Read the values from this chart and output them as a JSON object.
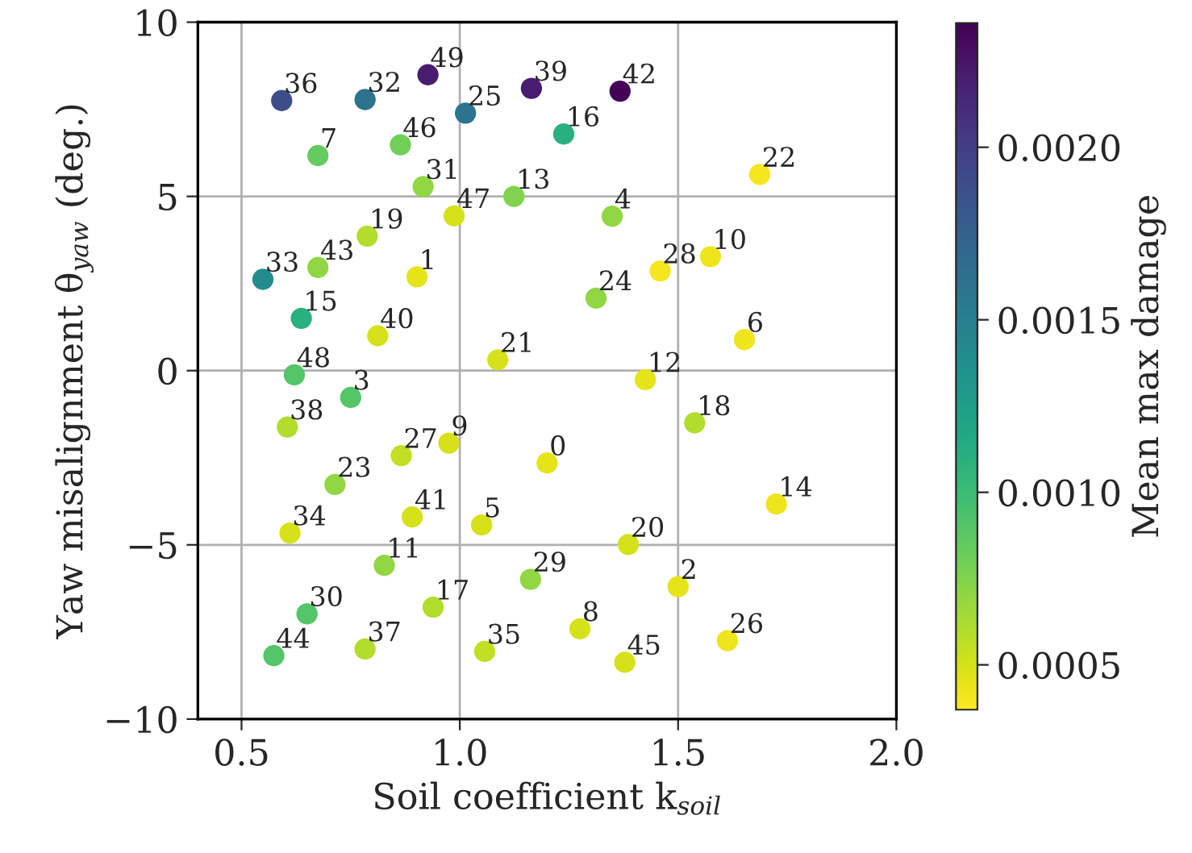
{
  "chart_data": {
    "type": "scatter",
    "xlabel": "Soil coefficient k$_{soil}$",
    "ylabel": "Yaw misalignment θ$_{yaw}$ (deg.)",
    "clabel": "Mean max damage",
    "x": [
      1.2,
      0.902,
      1.5,
      0.75,
      1.349,
      1.05,
      1.652,
      0.675,
      1.275,
      0.975,
      1.574,
      0.827,
      1.425,
      1.124,
      1.725,
      0.637,
      1.238,
      0.939,
      1.538,
      0.788,
      1.386,
      1.087,
      1.687,
      0.714,
      1.312,
      1.013,
      1.613,
      0.866,
      1.459,
      1.162,
      0.65,
      0.916,
      0.783,
      0.549,
      0.611,
      1.057,
      0.592,
      0.783,
      0.605,
      1.164,
      0.812,
      0.891,
      1.367,
      0.675,
      0.574,
      1.378,
      0.864,
      0.987,
      0.621,
      0.927
    ],
    "series": [
      {
        "values": [
          -2.65,
          2.69,
          -6.2,
          -0.77,
          4.43,
          -4.43,
          0.89,
          6.17,
          -7.41,
          -2.08,
          3.27,
          -5.59,
          -0.26,
          5.0,
          -3.83,
          1.5,
          6.79,
          -6.79,
          -1.5,
          3.86,
          -4.99,
          0.31,
          5.63,
          -3.27,
          2.08,
          7.39,
          -7.75,
          -2.44,
          2.86,
          -5.99,
          -6.98,
          5.28,
          7.78,
          2.62,
          -4.66,
          -8.06,
          7.75,
          -7.99,
          -1.62,
          8.1,
          1.0,
          -4.2,
          8.02,
          2.96,
          -8.18,
          -8.37,
          6.48,
          4.44,
          -0.12,
          8.49
        ],
        "cvalues": [
          0.00045,
          0.00045,
          0.00045,
          0.0009,
          0.0007,
          0.0005,
          0.00042,
          0.00085,
          0.0005,
          0.0005,
          0.00042,
          0.0007,
          0.00045,
          0.00075,
          0.00042,
          0.0011,
          0.0011,
          0.0006,
          0.0006,
          0.0006,
          0.0005,
          0.0005,
          0.0004,
          0.0007,
          0.0007,
          0.0016,
          0.00042,
          0.00055,
          0.0004,
          0.0007,
          0.0009,
          0.0007,
          0.0016,
          0.0014,
          0.0005,
          0.00055,
          0.0019,
          0.0006,
          0.0006,
          0.0022,
          0.0005,
          0.0005,
          0.00235,
          0.0007,
          0.0009,
          0.0005,
          0.0008,
          0.0005,
          0.0009,
          0.0022
        ]
      }
    ],
    "annotations": [
      {
        "text": "0",
        "x": 1.2,
        "y": -2.65
      },
      {
        "text": "1",
        "x": 0.902,
        "y": 2.69
      },
      {
        "text": "2",
        "x": 1.5,
        "y": -6.2
      },
      {
        "text": "3",
        "x": 0.75,
        "y": -0.77
      },
      {
        "text": "4",
        "x": 1.349,
        "y": 4.43
      },
      {
        "text": "5",
        "x": 1.05,
        "y": -4.43
      },
      {
        "text": "6",
        "x": 1.652,
        "y": 0.89
      },
      {
        "text": "7",
        "x": 0.675,
        "y": 6.17
      },
      {
        "text": "8",
        "x": 1.275,
        "y": -7.41
      },
      {
        "text": "9",
        "x": 0.975,
        "y": -2.08
      },
      {
        "text": "10",
        "x": 1.574,
        "y": 3.27
      },
      {
        "text": "11",
        "x": 0.827,
        "y": -5.59
      },
      {
        "text": "12",
        "x": 1.425,
        "y": -0.26
      },
      {
        "text": "13",
        "x": 1.124,
        "y": 5.0
      },
      {
        "text": "14",
        "x": 1.725,
        "y": -3.83
      },
      {
        "text": "15",
        "x": 0.637,
        "y": 1.5
      },
      {
        "text": "16",
        "x": 1.238,
        "y": 6.79
      },
      {
        "text": "17",
        "x": 0.939,
        "y": -6.79
      },
      {
        "text": "18",
        "x": 1.538,
        "y": -1.5
      },
      {
        "text": "19",
        "x": 0.788,
        "y": 3.86
      },
      {
        "text": "20",
        "x": 1.386,
        "y": -4.99
      },
      {
        "text": "21",
        "x": 1.087,
        "y": 0.31
      },
      {
        "text": "22",
        "x": 1.687,
        "y": 5.63
      },
      {
        "text": "23",
        "x": 0.714,
        "y": -3.27
      },
      {
        "text": "24",
        "x": 1.312,
        "y": 2.08
      },
      {
        "text": "25",
        "x": 1.013,
        "y": 7.39
      },
      {
        "text": "26",
        "x": 1.613,
        "y": -7.75
      },
      {
        "text": "27",
        "x": 0.866,
        "y": -2.44
      },
      {
        "text": "28",
        "x": 1.459,
        "y": 2.86
      },
      {
        "text": "29",
        "x": 1.162,
        "y": -5.99
      },
      {
        "text": "30",
        "x": 0.65,
        "y": -6.98
      },
      {
        "text": "31",
        "x": 0.916,
        "y": 5.28
      },
      {
        "text": "32",
        "x": 0.783,
        "y": 7.78
      },
      {
        "text": "33",
        "x": 0.549,
        "y": 2.62
      },
      {
        "text": "34",
        "x": 0.611,
        "y": -4.66
      },
      {
        "text": "35",
        "x": 1.057,
        "y": -8.06
      },
      {
        "text": "36",
        "x": 0.592,
        "y": 7.75
      },
      {
        "text": "37",
        "x": 0.783,
        "y": -7.99
      },
      {
        "text": "38",
        "x": 0.605,
        "y": -1.62
      },
      {
        "text": "39",
        "x": 1.164,
        "y": 8.1
      },
      {
        "text": "40",
        "x": 0.812,
        "y": 1.0
      },
      {
        "text": "41",
        "x": 0.891,
        "y": -4.2
      },
      {
        "text": "42",
        "x": 1.367,
        "y": 8.02
      },
      {
        "text": "43",
        "x": 0.675,
        "y": 2.96
      },
      {
        "text": "44",
        "x": 0.574,
        "y": -8.18
      },
      {
        "text": "45",
        "x": 1.378,
        "y": -8.37
      },
      {
        "text": "46",
        "x": 0.864,
        "y": 6.48
      },
      {
        "text": "47",
        "x": 0.987,
        "y": 4.44
      },
      {
        "text": "48",
        "x": 0.621,
        "y": -0.12
      },
      {
        "text": "49",
        "x": 0.927,
        "y": 8.49
      }
    ],
    "marker": "circle",
    "xlim": [
      0.4,
      2.0
    ],
    "xticks": [
      {
        "value": 0.5,
        "label": "0.5"
      },
      {
        "value": 1.0,
        "label": "1.0"
      },
      {
        "value": 1.5,
        "label": "1.5"
      },
      {
        "value": 2.0,
        "label": "2.0"
      }
    ],
    "ylim": [
      -10,
      10
    ],
    "yticks": [
      {
        "value": -10,
        "label": "−10"
      },
      {
        "value": -5,
        "label": "−5"
      },
      {
        "value": 0,
        "label": "0"
      },
      {
        "value": 5,
        "label": "5"
      },
      {
        "value": 10,
        "label": "10"
      }
    ],
    "clim": [
      0.00037,
      0.00236
    ],
    "cticks": [
      {
        "value": 0.0005,
        "label": "0.0005"
      },
      {
        "value": 0.001,
        "label": "0.0010"
      },
      {
        "value": 0.0015,
        "label": "0.0015"
      },
      {
        "value": 0.002,
        "label": "0.0020"
      }
    ],
    "grid": true
  }
}
